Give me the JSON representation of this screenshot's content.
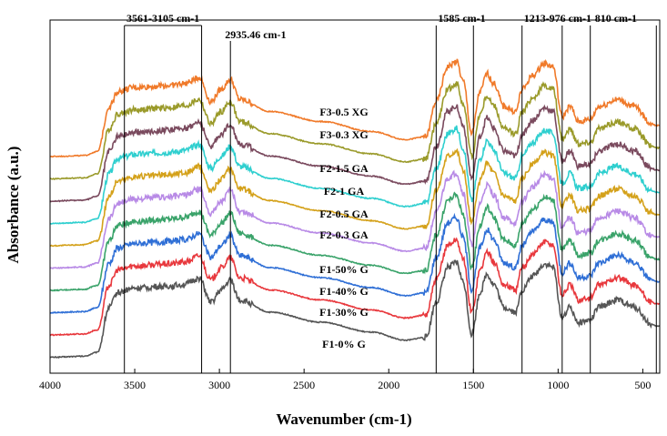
{
  "chart_data": {
    "type": "line",
    "xlabel": "Wavenumber (cm-1)",
    "ylabel": "Absorbance (a.u.)",
    "xlim": [
      4000,
      400
    ],
    "x_reversed": true,
    "xticks": [
      4000,
      3500,
      3000,
      2500,
      2000,
      1500,
      1000,
      500
    ],
    "grid": false,
    "annotations": [
      {
        "label": "3561-3105 cm-1",
        "from": 3561,
        "to": 3105
      },
      {
        "label": "2935.46 cm-1",
        "at": 2935
      },
      {
        "label": "1585 cm-1",
        "from": 1720,
        "to": 1500
      },
      {
        "label": "1213-976 cm-1",
        "from": 1213,
        "to": 976
      },
      {
        "label": "810 cm-1",
        "from": 810,
        "to": 420
      }
    ],
    "series": [
      {
        "name": "F1-0% G",
        "color": "#555555",
        "offset": 0
      },
      {
        "name": "F1-30% G",
        "color": "#e8383d",
        "offset": 1
      },
      {
        "name": "F1-40% G",
        "color": "#2f6fd6",
        "offset": 2
      },
      {
        "name": "F1-50% G",
        "color": "#3aa36a",
        "offset": 3
      },
      {
        "name": "F2-0.3 GA",
        "color": "#b88ae6",
        "offset": 4
      },
      {
        "name": "F2-0.5 GA",
        "color": "#d4a11a",
        "offset": 5
      },
      {
        "name": "F2-1 GA",
        "color": "#2fcfcf",
        "offset": 6
      },
      {
        "name": "F2-1.5 GA",
        "color": "#7a4a5e",
        "offset": 7
      },
      {
        "name": "F3-0.3 XG",
        "color": "#9a9a2a",
        "offset": 8
      },
      {
        "name": "F3-0.5 XG",
        "color": "#f07a2a",
        "offset": 9
      }
    ]
  }
}
